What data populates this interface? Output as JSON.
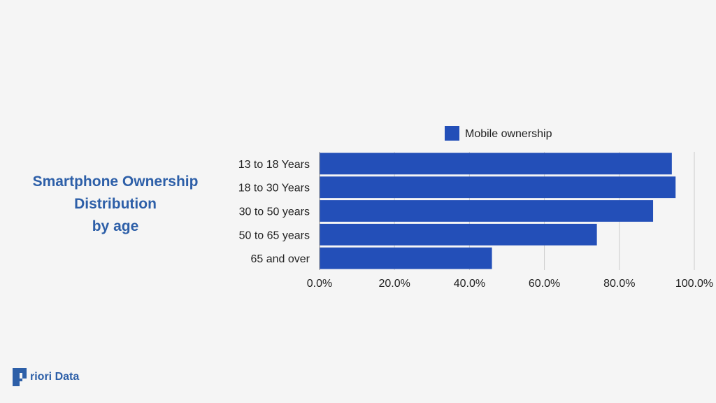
{
  "title_lines": [
    "Smartphone Ownership",
    "Distribution",
    "by age"
  ],
  "brand": {
    "name": "riori Data",
    "mark": "P"
  },
  "colors": {
    "bar": "#234fb8",
    "title": "#2d5fa8",
    "grid": "#cccccc",
    "text": "#222222"
  },
  "chart_data": {
    "type": "bar",
    "orientation": "horizontal",
    "categories": [
      "13 to 18 Years",
      "18 to 30 Years",
      "30 to 50 years",
      "50 to 65 years",
      "65 and over"
    ],
    "series": [
      {
        "name": "Mobile ownership",
        "values": [
          94,
          95,
          89,
          74,
          46
        ]
      }
    ],
    "xlim": [
      0,
      100
    ],
    "xticks": [
      "0.0%",
      "20.0%",
      "40.0%",
      "60.0%",
      "80.0%",
      "100.0%"
    ],
    "grid": true,
    "legend": "top"
  }
}
